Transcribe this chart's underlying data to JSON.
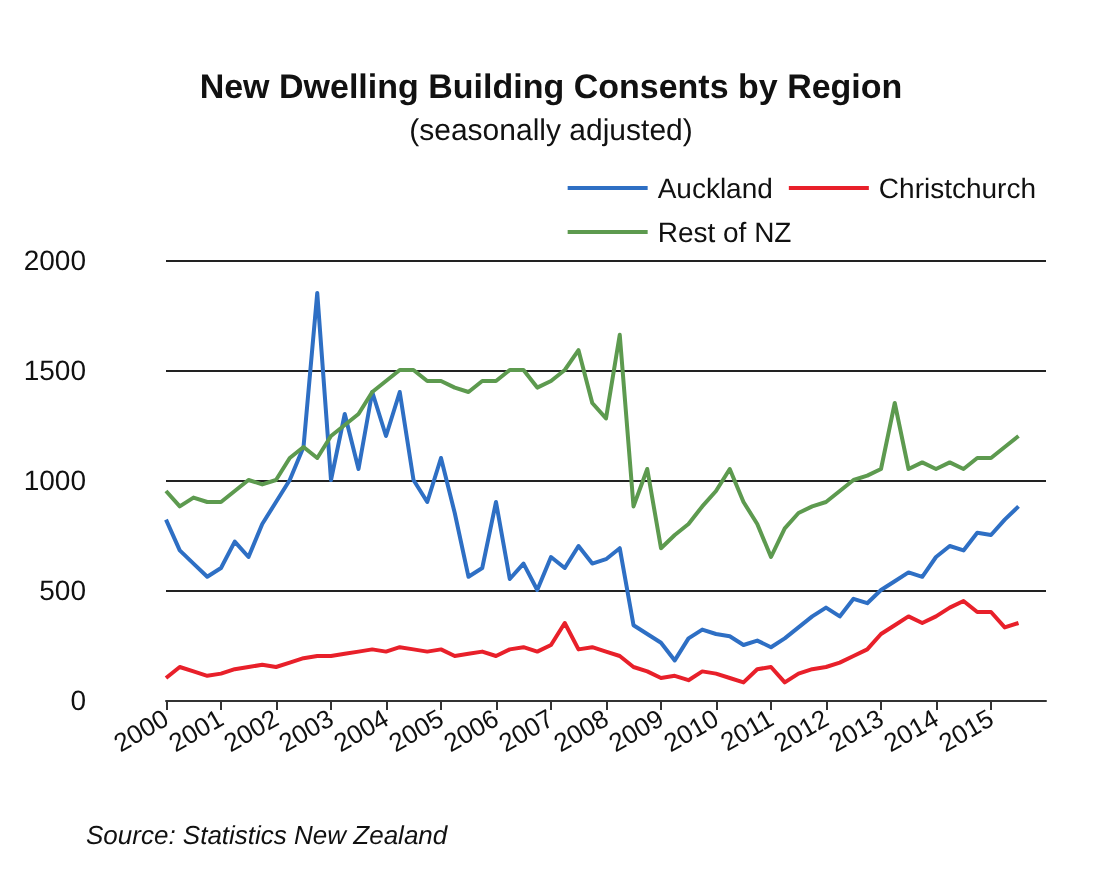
{
  "chart_data": {
    "type": "line",
    "title": "New Dwelling Building Consents by Region",
    "subtitle": "(seasonally adjusted)",
    "annotations": [
      "Source: Statistics New Zealand"
    ],
    "x": [
      2000,
      2000.25,
      2000.5,
      2000.75,
      2001,
      2001.25,
      2001.5,
      2001.75,
      2002,
      2002.25,
      2002.5,
      2002.75,
      2003,
      2003.25,
      2003.5,
      2003.75,
      2004,
      2004.25,
      2004.5,
      2004.75,
      2005,
      2005.25,
      2005.5,
      2005.75,
      2006,
      2006.25,
      2006.5,
      2006.75,
      2007,
      2007.25,
      2007.5,
      2007.75,
      2008,
      2008.25,
      2008.5,
      2008.75,
      2009,
      2009.25,
      2009.5,
      2009.75,
      2010,
      2010.25,
      2010.5,
      2010.75,
      2011,
      2011.25,
      2011.5,
      2011.75,
      2012,
      2012.25,
      2012.5,
      2012.75,
      2013,
      2013.25,
      2013.5,
      2013.75,
      2014,
      2014.25,
      2014.5,
      2014.75,
      2015,
      2015.25,
      2015.5
    ],
    "series": [
      {
        "name": "Auckland",
        "color": "#2e6fc4",
        "values": [
          820,
          680,
          620,
          560,
          600,
          720,
          650,
          800,
          900,
          1000,
          1150,
          1850,
          1000,
          1300,
          1050,
          1400,
          1200,
          1400,
          1000,
          900,
          1100,
          850,
          560,
          600,
          900,
          550,
          620,
          500,
          650,
          600,
          700,
          620,
          640,
          690,
          340,
          300,
          260,
          180,
          280,
          320,
          300,
          290,
          250,
          270,
          240,
          280,
          330,
          380,
          420,
          380,
          460,
          440,
          500,
          540,
          580,
          560,
          650,
          700,
          680,
          760,
          750,
          820,
          880
        ]
      },
      {
        "name": "Christchurch",
        "color": "#e8202a",
        "values": [
          100,
          150,
          130,
          110,
          120,
          140,
          150,
          160,
          150,
          170,
          190,
          200,
          200,
          210,
          220,
          230,
          220,
          240,
          230,
          220,
          230,
          200,
          210,
          220,
          200,
          230,
          240,
          220,
          250,
          350,
          230,
          240,
          220,
          200,
          150,
          130,
          100,
          110,
          90,
          130,
          120,
          100,
          80,
          140,
          150,
          80,
          120,
          140,
          150,
          170,
          200,
          230,
          300,
          340,
          380,
          350,
          380,
          420,
          450,
          400,
          400,
          330,
          350
        ]
      },
      {
        "name": "Rest of NZ",
        "color": "#5d9a4f",
        "values": [
          950,
          880,
          920,
          900,
          900,
          950,
          1000,
          980,
          1000,
          1100,
          1150,
          1100,
          1200,
          1250,
          1300,
          1400,
          1450,
          1500,
          1500,
          1450,
          1450,
          1420,
          1400,
          1450,
          1450,
          1500,
          1500,
          1420,
          1450,
          1500,
          1590,
          1350,
          1280,
          1660,
          880,
          1050,
          690,
          750,
          800,
          880,
          950,
          1050,
          900,
          800,
          650,
          780,
          850,
          880,
          900,
          950,
          1000,
          1020,
          1050,
          1350,
          1050,
          1080,
          1050,
          1080,
          1050,
          1100,
          1100,
          1150,
          1200
        ]
      }
    ],
    "xlim": [
      2000,
      2016
    ],
    "xticks": [
      2000,
      2001,
      2002,
      2003,
      2004,
      2005,
      2006,
      2007,
      2008,
      2009,
      2010,
      2011,
      2012,
      2013,
      2014,
      2015
    ],
    "ylim": [
      0,
      2000
    ],
    "yticks": [
      0,
      500,
      1000,
      1500,
      2000
    ],
    "grid": "y",
    "legend": "top right",
    "marker": "none",
    "line_style": "solid"
  }
}
